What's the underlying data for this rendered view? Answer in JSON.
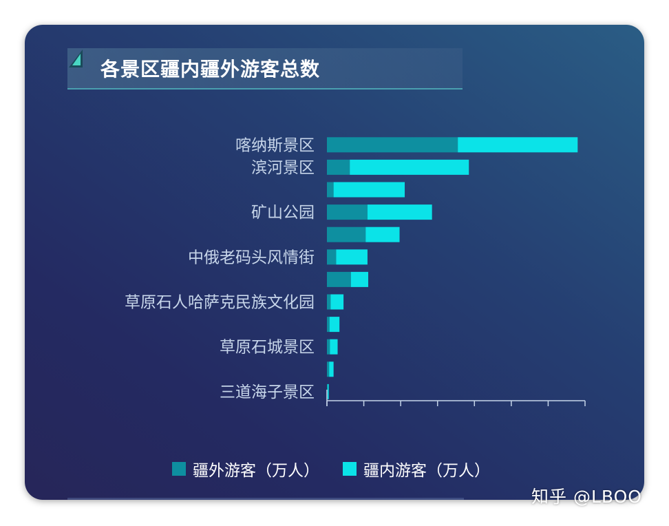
{
  "title": "各景区疆内疆外游客总数",
  "watermark": "知乎 @LBOO",
  "colors": {
    "outside": "#0e8fa0",
    "inside": "#0be3e8",
    "axis": "#c7d6ea"
  },
  "chart_data": {
    "type": "bar",
    "orientation": "horizontal",
    "stacked": true,
    "title": "各景区疆内疆外游客总数",
    "categories": [
      "喀纳斯景区",
      "滨河景区",
      "",
      "矿山公园",
      "",
      "中俄老码头风情街",
      "",
      "草原石人哈萨克民族文化园",
      "",
      "草原石城景区",
      "",
      "三道海子景区"
    ],
    "series": [
      {
        "name": "疆外游客（万人）",
        "values": [
          355,
          62,
          18,
          110,
          105,
          25,
          65,
          10,
          7,
          8,
          6,
          2
        ]
      },
      {
        "name": "疆内游客（万人）",
        "values": [
          325,
          323,
          193,
          175,
          92,
          85,
          47,
          35,
          27,
          21,
          12,
          3
        ]
      }
    ],
    "xlim": [
      0,
      700
    ],
    "x_tick_count": 8,
    "tick_labels_shown": false,
    "grid": false,
    "legend_position": "bottom"
  },
  "legend": [
    {
      "label": "疆外游客（万人）",
      "color": "#0e8fa0"
    },
    {
      "label": "疆内游客（万人）",
      "color": "#0be3e8"
    }
  ]
}
